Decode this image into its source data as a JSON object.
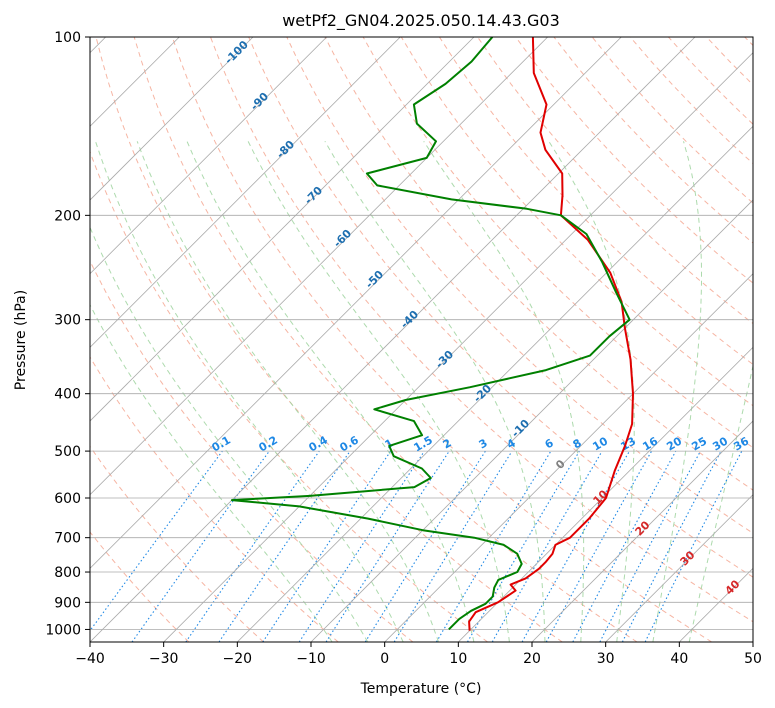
{
  "chart_data": {
    "type": "line",
    "title": "wetPf2_GN04.2025.050.14.43.G03",
    "xlabel": "Temperature (°C)",
    "ylabel": "Pressure (hPa)",
    "xlim": [
      -40,
      50
    ],
    "ylim": [
      1050,
      100
    ],
    "y_scale": "log",
    "skew_deg": 45,
    "grid": true,
    "x_ticks": [
      "−40",
      "−30",
      "−20",
      "−10",
      "0",
      "10",
      "20",
      "30",
      "40",
      "50"
    ],
    "y_ticks": [
      "100",
      "200",
      "300",
      "400",
      "500",
      "600",
      "700",
      "800",
      "900",
      "1000"
    ],
    "colors": {
      "temperature": "#e00000",
      "dewpoint": "#008000",
      "isotherms": "#aaaaaa",
      "dry_adiabats": "#f4a28c",
      "moist_adiabats": "#9fd39f",
      "mixing_ratio": "#1e88e5",
      "annotation_blue": "#1e6fb0",
      "annotation_red": "#d62728",
      "zero_label": "#808080"
    },
    "series": [
      {
        "name": "temperature",
        "points": [
          {
            "p": 1005,
            "t": 10.0
          },
          {
            "p": 970,
            "t": 8.7
          },
          {
            "p": 935,
            "t": 8.3
          },
          {
            "p": 900,
            "t": 10.0
          },
          {
            "p": 860,
            "t": 10.8
          },
          {
            "p": 840,
            "t": 9.3
          },
          {
            "p": 820,
            "t": 10.5
          },
          {
            "p": 790,
            "t": 11.0
          },
          {
            "p": 770,
            "t": 11.0
          },
          {
            "p": 745,
            "t": 10.8
          },
          {
            "p": 720,
            "t": 10.0
          },
          {
            "p": 700,
            "t": 11.0
          },
          {
            "p": 650,
            "t": 11.0
          },
          {
            "p": 600,
            "t": 10.5
          },
          {
            "p": 540,
            "t": 8.0
          },
          {
            "p": 490,
            "t": 6.0
          },
          {
            "p": 450,
            "t": 4.0
          },
          {
            "p": 400,
            "t": 0.0
          },
          {
            "p": 350,
            "t": -5.0
          },
          {
            "p": 310,
            "t": -10.0
          },
          {
            "p": 280,
            "t": -14.0
          },
          {
            "p": 250,
            "t": -19.5
          },
          {
            "p": 220,
            "t": -27.0
          },
          {
            "p": 200,
            "t": -34.0
          },
          {
            "p": 185,
            "t": -36.5
          },
          {
            "p": 170,
            "t": -39.5
          },
          {
            "p": 155,
            "t": -45.0
          },
          {
            "p": 145,
            "t": -48.0
          },
          {
            "p": 130,
            "t": -51.0
          },
          {
            "p": 115,
            "t": -57.0
          },
          {
            "p": 100,
            "t": -62.0
          }
        ]
      },
      {
        "name": "dewpoint",
        "points": [
          {
            "p": 1000,
            "t": 7.0
          },
          {
            "p": 960,
            "t": 7.0
          },
          {
            "p": 930,
            "t": 7.5
          },
          {
            "p": 905,
            "t": 8.5
          },
          {
            "p": 880,
            "t": 8.5
          },
          {
            "p": 850,
            "t": 7.5
          },
          {
            "p": 825,
            "t": 7.0
          },
          {
            "p": 800,
            "t": 8.5
          },
          {
            "p": 775,
            "t": 8.0
          },
          {
            "p": 745,
            "t": 6.0
          },
          {
            "p": 720,
            "t": 3.0
          },
          {
            "p": 700,
            "t": -2.0
          },
          {
            "p": 680,
            "t": -10.0
          },
          {
            "p": 650,
            "t": -19.0
          },
          {
            "p": 620,
            "t": -30.0
          },
          {
            "p": 605,
            "t": -40.0
          },
          {
            "p": 595,
            "t": -30.0
          },
          {
            "p": 575,
            "t": -17.0
          },
          {
            "p": 555,
            "t": -16.0
          },
          {
            "p": 535,
            "t": -18.5
          },
          {
            "p": 510,
            "t": -24.0
          },
          {
            "p": 490,
            "t": -26.0
          },
          {
            "p": 470,
            "t": -23.0
          },
          {
            "p": 445,
            "t": -26.0
          },
          {
            "p": 425,
            "t": -33.0
          },
          {
            "p": 410,
            "t": -30.0
          },
          {
            "p": 390,
            "t": -23.0
          },
          {
            "p": 365,
            "t": -15.0
          },
          {
            "p": 345,
            "t": -11.0
          },
          {
            "p": 320,
            "t": -11.0
          },
          {
            "p": 300,
            "t": -10.5
          },
          {
            "p": 270,
            "t": -16.0
          },
          {
            "p": 240,
            "t": -22.0
          },
          {
            "p": 215,
            "t": -28.0
          },
          {
            "p": 200,
            "t": -34.0
          },
          {
            "p": 195,
            "t": -39.5
          },
          {
            "p": 188,
            "t": -51.0
          },
          {
            "p": 178,
            "t": -63.0
          },
          {
            "p": 170,
            "t": -66.0
          },
          {
            "p": 160,
            "t": -60.0
          },
          {
            "p": 150,
            "t": -61.0
          },
          {
            "p": 140,
            "t": -66.0
          },
          {
            "p": 130,
            "t": -69.0
          },
          {
            "p": 120,
            "t": -67.5
          },
          {
            "p": 110,
            "t": -67.0
          },
          {
            "p": 100,
            "t": -67.5
          }
        ]
      }
    ],
    "isotherm_labels": [
      "-100",
      "-90",
      "-80",
      "-70",
      "-60",
      "-50",
      "-40",
      "-30",
      "-20",
      "-10"
    ],
    "mixing_ratio_labels": [
      "0.1",
      "0.2",
      "0.4",
      "0.6",
      "1",
      "1.5",
      "2",
      "3",
      "4",
      "6",
      "8",
      "10",
      "13",
      "16",
      "20",
      "25",
      "30",
      "36"
    ],
    "isotherm_labels_right": [
      "0",
      "10",
      "20",
      "30",
      "40"
    ]
  }
}
